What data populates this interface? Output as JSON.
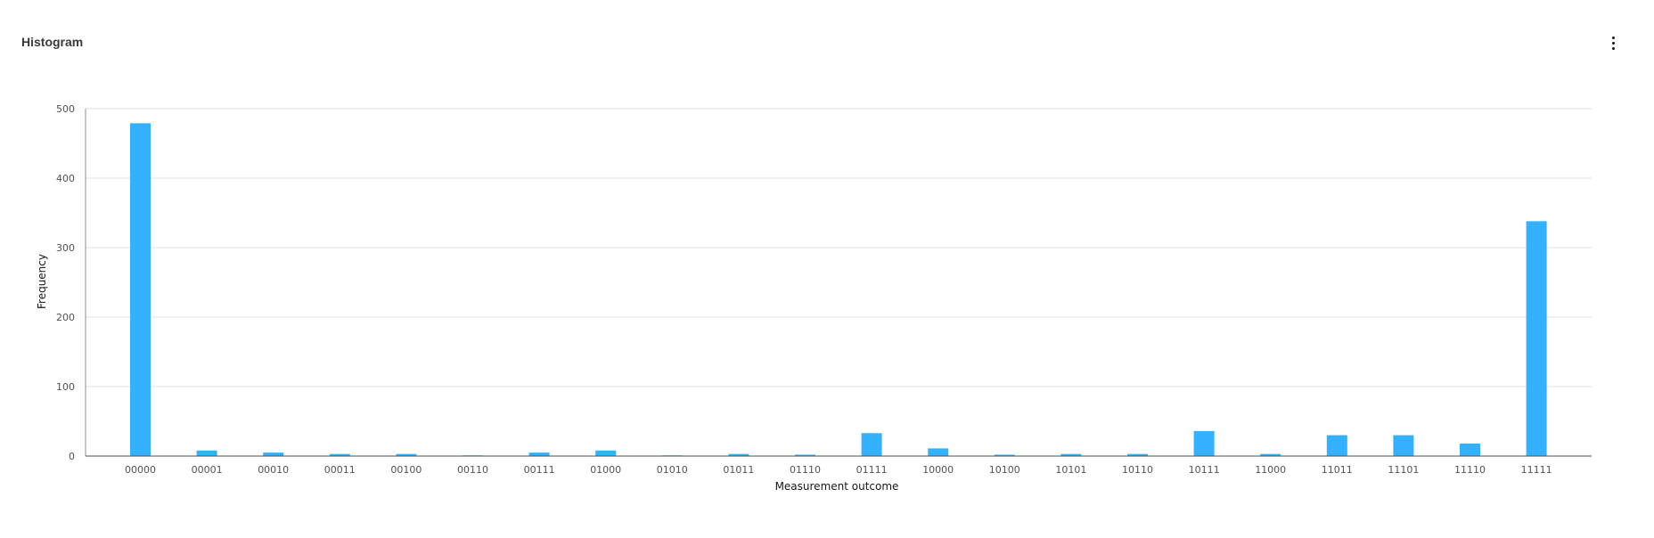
{
  "card": {
    "title": "Histogram",
    "menu_icon": "overflow-menu-vertical-icon"
  },
  "chart_data": {
    "type": "bar",
    "xlabel": "Measurement outcome",
    "ylabel": "Frequency",
    "ylim": [
      0,
      500
    ],
    "yticks": [
      0,
      100,
      200,
      300,
      400,
      500
    ],
    "grid": true,
    "bar_color": "#33b1ff",
    "categories": [
      "00000",
      "00001",
      "00010",
      "00011",
      "00100",
      "00110",
      "00111",
      "01000",
      "01010",
      "01011",
      "01110",
      "01111",
      "10000",
      "10100",
      "10101",
      "10110",
      "10111",
      "11000",
      "11011",
      "11101",
      "11110",
      "11111"
    ],
    "values": [
      479,
      8,
      5,
      3,
      3,
      1,
      5,
      8,
      1,
      3,
      2,
      33,
      11,
      2,
      3,
      3,
      36,
      3,
      30,
      30,
      18,
      338
    ]
  }
}
